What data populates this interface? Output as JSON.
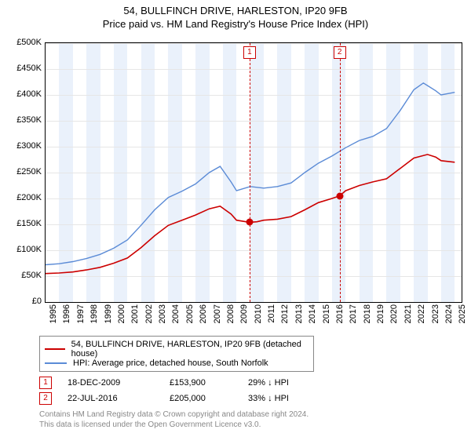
{
  "title_line1": "54, BULLFINCH DRIVE, HARLESTON, IP20 9FB",
  "title_line2": "Price paid vs. HM Land Registry's House Price Index (HPI)",
  "chart": {
    "type": "line",
    "background_color": "#ffffff",
    "grid_color": "#e6e6e6",
    "band_color": "#eaf1fb",
    "axis_color": "#000000",
    "xlim": [
      1995,
      2025.5
    ],
    "ylim": [
      0,
      500000
    ],
    "ytick_step": 50000,
    "y_ticks": [
      "£0",
      "£50K",
      "£100K",
      "£150K",
      "£200K",
      "£250K",
      "£300K",
      "£350K",
      "£400K",
      "£450K",
      "£500K"
    ],
    "x_ticks": [
      1995,
      1996,
      1997,
      1998,
      1999,
      2000,
      2001,
      2002,
      2003,
      2004,
      2005,
      2006,
      2007,
      2008,
      2009,
      2010,
      2011,
      2012,
      2013,
      2014,
      2015,
      2016,
      2017,
      2018,
      2019,
      2020,
      2021,
      2022,
      2023,
      2024,
      2025
    ],
    "label_fontsize": 11,
    "series": [
      {
        "name": "property",
        "color": "#cc0000",
        "line_width": 1.6,
        "legend": "54, BULLFINCH DRIVE, HARLESTON, IP20 9FB (detached house)",
        "data": [
          [
            1995,
            55000
          ],
          [
            1996,
            56000
          ],
          [
            1997,
            58000
          ],
          [
            1998,
            62000
          ],
          [
            1999,
            67000
          ],
          [
            2000,
            75000
          ],
          [
            2001,
            85000
          ],
          [
            2002,
            105000
          ],
          [
            2003,
            128000
          ],
          [
            2004,
            148000
          ],
          [
            2005,
            158000
          ],
          [
            2006,
            168000
          ],
          [
            2007,
            180000
          ],
          [
            2007.8,
            185000
          ],
          [
            2008.6,
            170000
          ],
          [
            2009,
            158000
          ],
          [
            2009.96,
            153900
          ],
          [
            2010.5,
            155000
          ],
          [
            2011,
            158000
          ],
          [
            2012,
            160000
          ],
          [
            2013,
            165000
          ],
          [
            2014,
            178000
          ],
          [
            2015,
            192000
          ],
          [
            2016,
            200000
          ],
          [
            2016.56,
            205000
          ],
          [
            2017,
            215000
          ],
          [
            2018,
            225000
          ],
          [
            2019,
            232000
          ],
          [
            2020,
            238000
          ],
          [
            2021,
            258000
          ],
          [
            2022,
            278000
          ],
          [
            2023,
            285000
          ],
          [
            2023.6,
            280000
          ],
          [
            2024,
            273000
          ],
          [
            2025,
            270000
          ]
        ]
      },
      {
        "name": "hpi",
        "color": "#5b8bd6",
        "line_width": 1.4,
        "legend": "HPI: Average price, detached house, South Norfolk",
        "data": [
          [
            1995,
            72000
          ],
          [
            1996,
            74000
          ],
          [
            1997,
            78000
          ],
          [
            1998,
            84000
          ],
          [
            1999,
            92000
          ],
          [
            2000,
            104000
          ],
          [
            2001,
            120000
          ],
          [
            2002,
            148000
          ],
          [
            2003,
            178000
          ],
          [
            2004,
            202000
          ],
          [
            2005,
            214000
          ],
          [
            2006,
            228000
          ],
          [
            2007,
            250000
          ],
          [
            2007.8,
            262000
          ],
          [
            2008.6,
            232000
          ],
          [
            2009,
            215000
          ],
          [
            2010,
            223000
          ],
          [
            2011,
            220000
          ],
          [
            2012,
            223000
          ],
          [
            2013,
            230000
          ],
          [
            2014,
            250000
          ],
          [
            2015,
            268000
          ],
          [
            2016,
            282000
          ],
          [
            2017,
            298000
          ],
          [
            2018,
            312000
          ],
          [
            2019,
            320000
          ],
          [
            2020,
            335000
          ],
          [
            2021,
            370000
          ],
          [
            2022,
            410000
          ],
          [
            2022.7,
            423000
          ],
          [
            2023,
            418000
          ],
          [
            2023.6,
            408000
          ],
          [
            2024,
            400000
          ],
          [
            2025,
            405000
          ]
        ]
      }
    ],
    "sale_events": [
      {
        "n": 1,
        "year": 2009.96,
        "price": 153900
      },
      {
        "n": 2,
        "year": 2016.56,
        "price": 205000
      }
    ]
  },
  "events": [
    {
      "n": "1",
      "date": "18-DEC-2009",
      "price": "£153,900",
      "delta": "29% ↓ HPI"
    },
    {
      "n": "2",
      "date": "22-JUL-2016",
      "price": "£205,000",
      "delta": "33% ↓ HPI"
    }
  ],
  "attribution": {
    "line1": "Contains HM Land Registry data © Crown copyright and database right 2024.",
    "line2": "This data is licensed under the Open Government Licence v3.0."
  }
}
